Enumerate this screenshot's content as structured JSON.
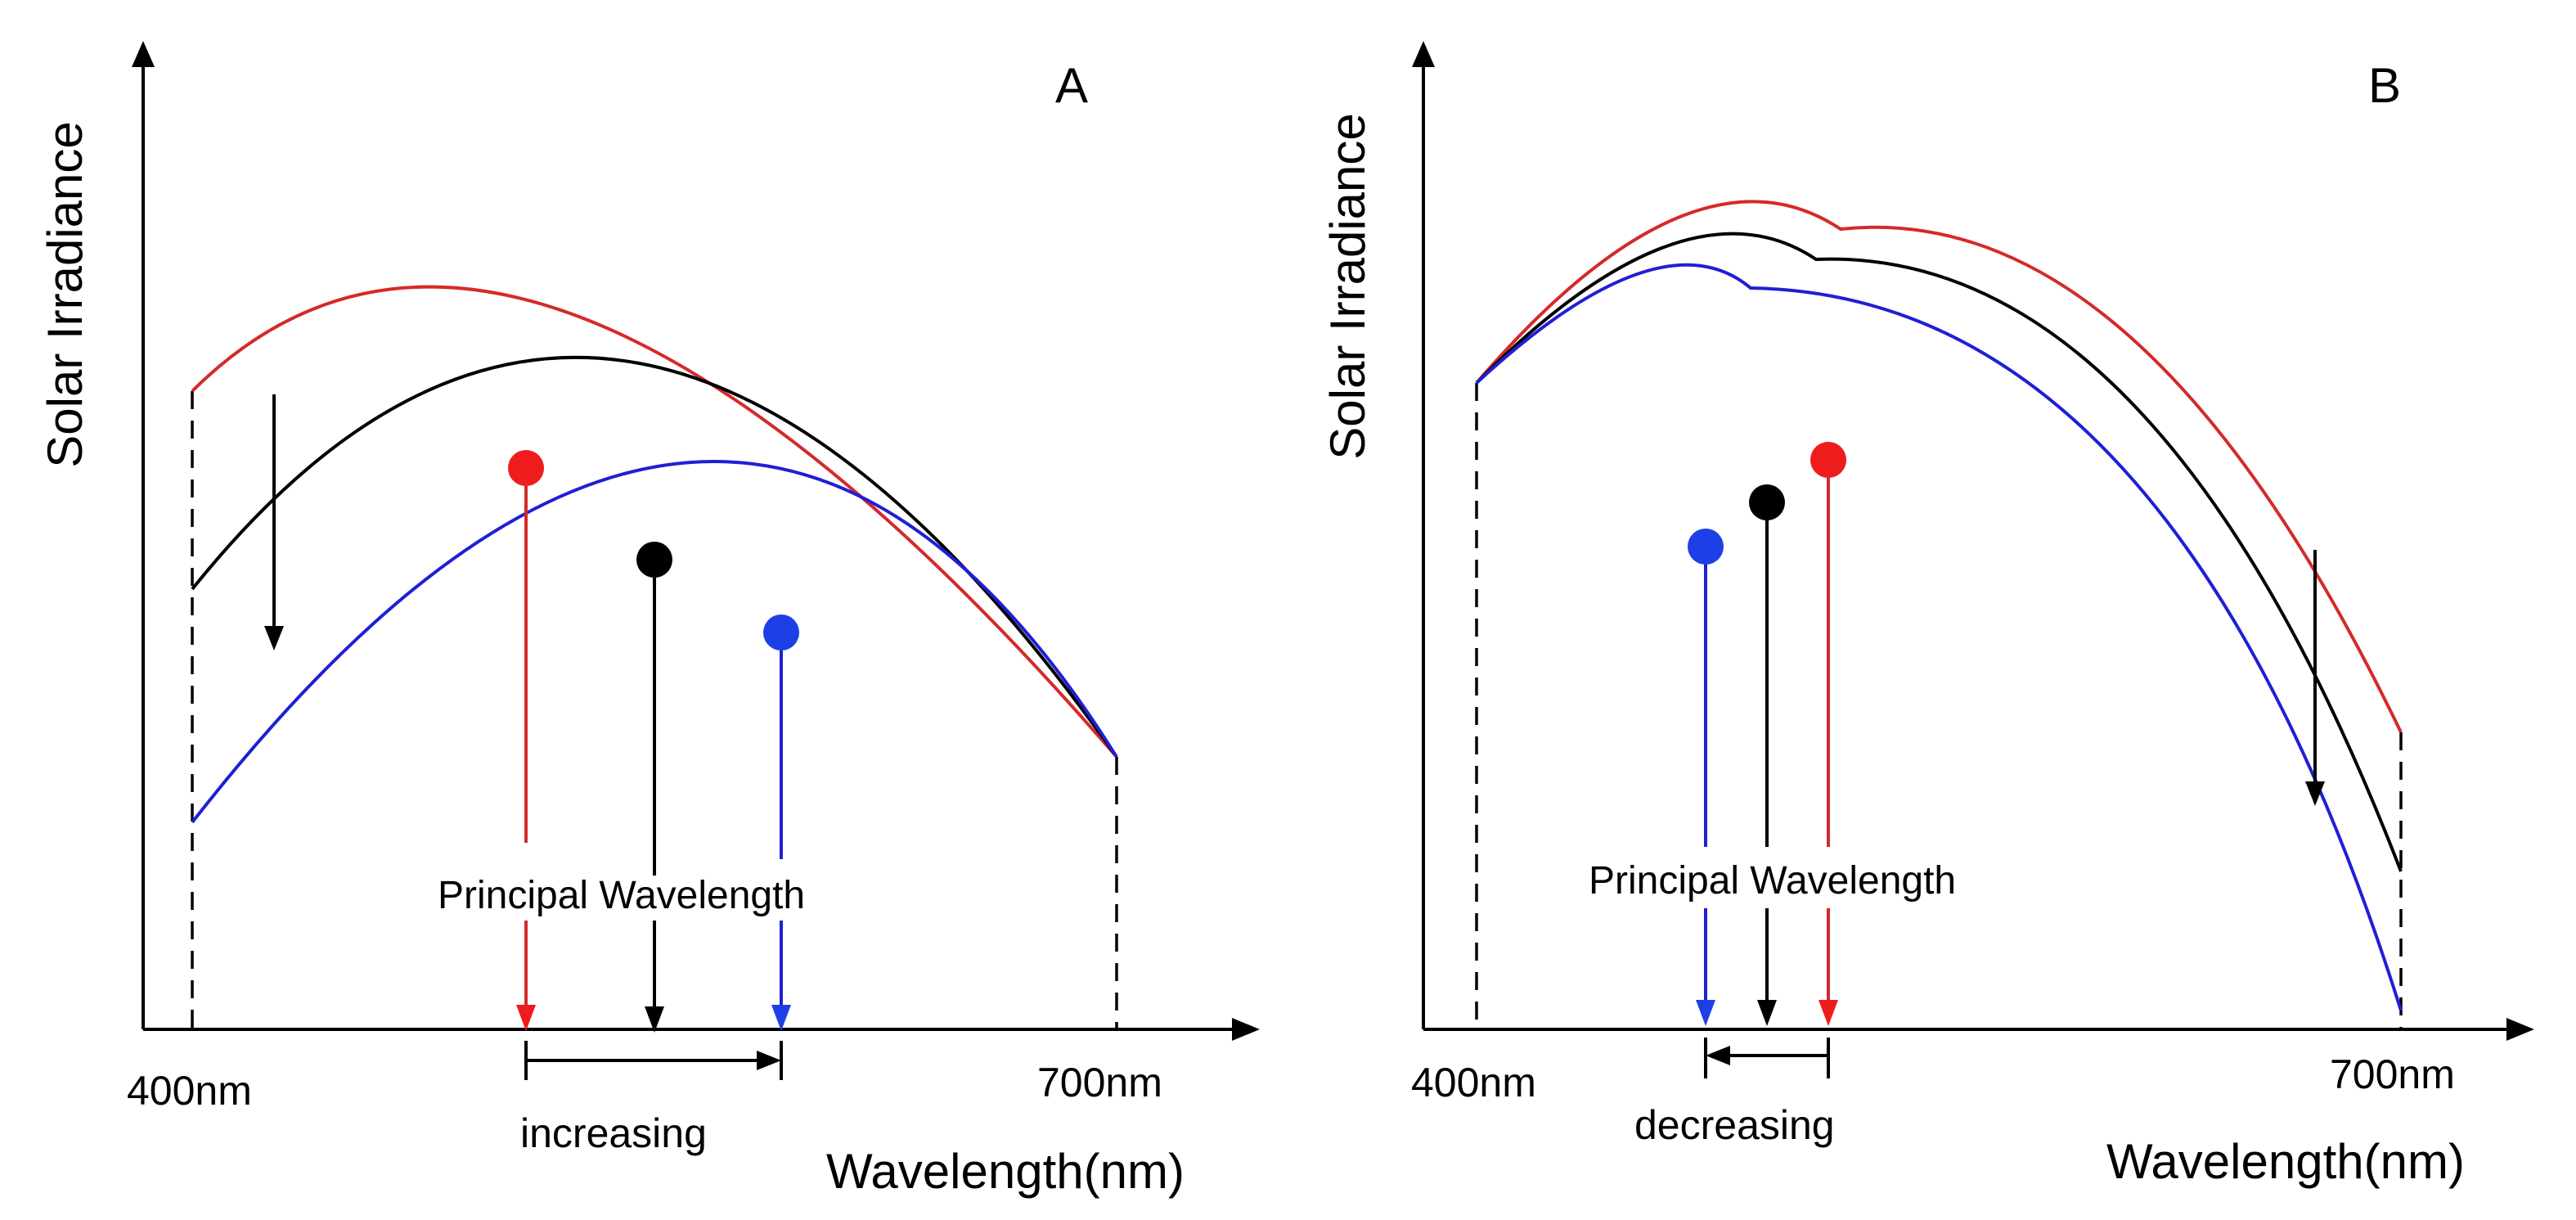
{
  "figure": {
    "panel_a": {
      "letter": "A",
      "y_axis_label": "Solar Irradiance",
      "x_axis_label": "Wavelength(nm)",
      "x_start_label": "400nm",
      "x_end_label": "700nm",
      "annotation": "Principal Wavelength",
      "trend": "increasing"
    },
    "panel_b": {
      "letter": "B",
      "y_axis_label": "Solar Irradiance",
      "x_axis_label": "Wavelength(nm)",
      "x_start_label": "400nm",
      "x_end_label": "700nm",
      "annotation": "Principal Wavelength",
      "trend": "decreasing"
    }
  },
  "colors": {
    "red": "#d42a2a",
    "black": "#000000",
    "blue": "#1f1fd6",
    "marker_red": "#ee1c1c",
    "marker_blue": "#1f3fe6"
  }
}
